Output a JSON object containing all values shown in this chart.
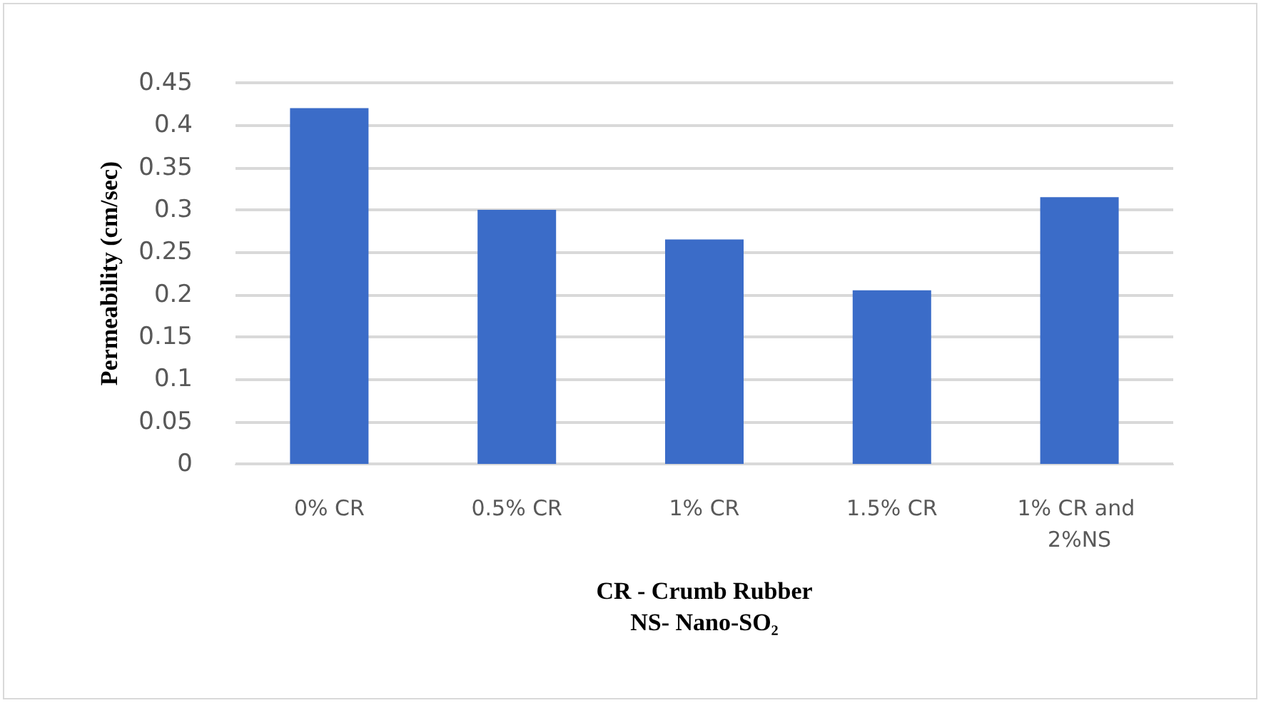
{
  "chart_data": {
    "type": "bar",
    "ylabel": "Permeability (cm/sec)",
    "xlabel": "CR - Crumb Rubber\nNS- Nano-SO₂",
    "categories": [
      "0% CR",
      "0.5% CR",
      "1% CR",
      "1.5% CR",
      "1% CR and 2%NS"
    ],
    "values": [
      0.42,
      0.3,
      0.265,
      0.205,
      0.315
    ],
    "color": "#3b6cc8",
    "ylim": [
      0,
      0.45
    ],
    "yticks": [
      0,
      0.05,
      0.1,
      0.15,
      0.2,
      0.25,
      0.3,
      0.35,
      0.4,
      0.45
    ],
    "grid": "y"
  }
}
